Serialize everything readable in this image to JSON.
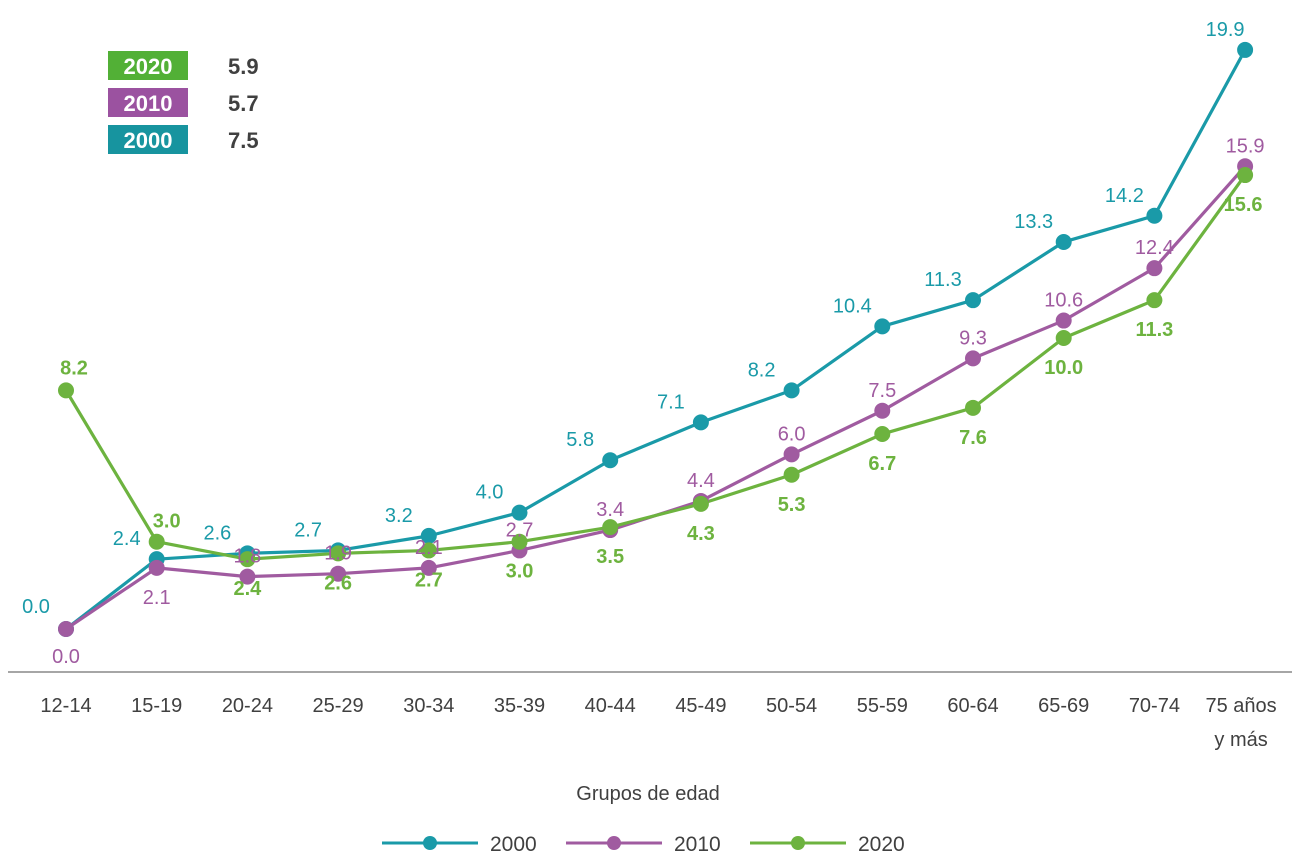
{
  "chart_data": {
    "type": "line",
    "categories": [
      "12-14",
      "15-19",
      "20-24",
      "25-29",
      "30-34",
      "35-39",
      "40-44",
      "45-49",
      "50-54",
      "55-59",
      "60-64",
      "65-69",
      "70-74",
      "75 años y más"
    ],
    "category_lines": [
      [
        "12-14"
      ],
      [
        "15-19"
      ],
      [
        "20-24"
      ],
      [
        "25-29"
      ],
      [
        "30-34"
      ],
      [
        "35-39"
      ],
      [
        "40-44"
      ],
      [
        "45-49"
      ],
      [
        "50-54"
      ],
      [
        "55-59"
      ],
      [
        "60-64"
      ],
      [
        "65-69"
      ],
      [
        "70-74"
      ],
      [
        "75 años",
        "y más"
      ]
    ],
    "series": [
      {
        "name": "2000",
        "color": "#1a9aa8",
        "values": [
          0.0,
          2.4,
          2.6,
          2.7,
          3.2,
          4.0,
          5.8,
          7.1,
          8.2,
          10.4,
          11.3,
          13.3,
          14.2,
          19.9
        ],
        "labels": [
          "0.0",
          "2.4",
          "2.6",
          "2.7",
          "3.2",
          "4.0",
          "5.8",
          "7.1",
          "8.2",
          "10.4",
          "11.3",
          "13.3",
          "14.2",
          "19.9"
        ]
      },
      {
        "name": "2010",
        "color": "#a05ba0",
        "values": [
          0.0,
          2.1,
          1.8,
          1.9,
          2.1,
          2.7,
          3.4,
          4.4,
          6.0,
          7.5,
          9.3,
          10.6,
          12.4,
          15.9
        ],
        "labels": [
          "0.0",
          "2.1",
          "1.8",
          "1.9",
          "2.1",
          "2.7",
          "3.4",
          "4.4",
          "6.0",
          "7.5",
          "9.3",
          "10.6",
          "12.4",
          "15.9"
        ]
      },
      {
        "name": "2020",
        "color": "#6db33f",
        "values": [
          8.2,
          3.0,
          2.4,
          2.6,
          2.7,
          3.0,
          3.5,
          4.3,
          5.3,
          6.7,
          7.6,
          10.0,
          11.3,
          15.6
        ],
        "labels": [
          "8.2",
          "3.0",
          "2.4",
          "2.6",
          "2.7",
          "3.0",
          "3.5",
          "4.3",
          "5.3",
          "6.7",
          "7.6",
          "10.0",
          "11.3",
          "15.6"
        ]
      }
    ],
    "summary": [
      {
        "year": "2020",
        "value": "5.9",
        "color": "#52b036"
      },
      {
        "year": "2010",
        "value": "5.7",
        "color": "#9b52a0"
      },
      {
        "year": "2000",
        "value": "7.5",
        "color": "#17949f"
      }
    ],
    "xlabel": "Grupos de edad",
    "ylabel": "",
    "ylim": [
      0,
      20
    ],
    "grid": false,
    "legend_position": "bottom-center",
    "axis_color": "#a6a6a6"
  }
}
